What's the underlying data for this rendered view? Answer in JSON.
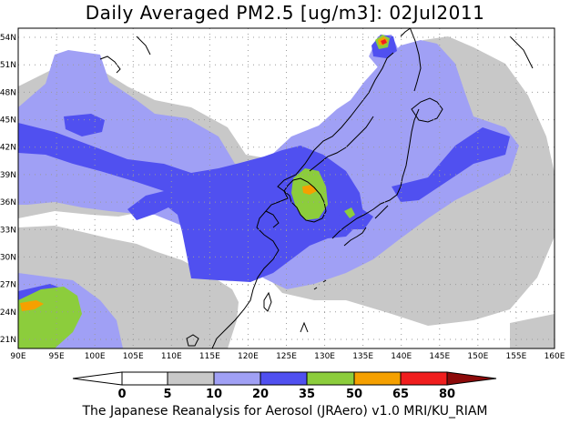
{
  "title": "Daily Averaged PM2.5 [ug/m3]: 02Jul2011",
  "footer": "The Japanese Reanalysis for Aerosol (JRAero) v1.0 MRI/KU_RIAM",
  "map": {
    "lon_range": [
      90,
      160
    ],
    "lat_range": [
      20,
      55
    ],
    "lon_ticks": [
      "90E",
      "95E",
      "100E",
      "105E",
      "110E",
      "115E",
      "120E",
      "125E",
      "130E",
      "135E",
      "140E",
      "145E",
      "150E",
      "155E",
      "160E"
    ],
    "lat_ticks": [
      "54N",
      "51N",
      "48N",
      "45N",
      "42N",
      "39N",
      "36N",
      "33N",
      "30N",
      "27N",
      "24N",
      "21N"
    ]
  },
  "colorbar": {
    "labels": [
      "0",
      "5",
      "10",
      "20",
      "35",
      "50",
      "65",
      "80"
    ],
    "colors": {
      "below_0": "#ffffff",
      "c0_5": "#ffffff",
      "c5_10": "#c8c8c8",
      "c10_20": "#a0a0f5",
      "c20_35": "#5050f0",
      "c35_50": "#8ccd3c",
      "c50_65": "#f5a000",
      "c65_80": "#f01e1e",
      "above_80": "#8c0a0a"
    }
  }
}
